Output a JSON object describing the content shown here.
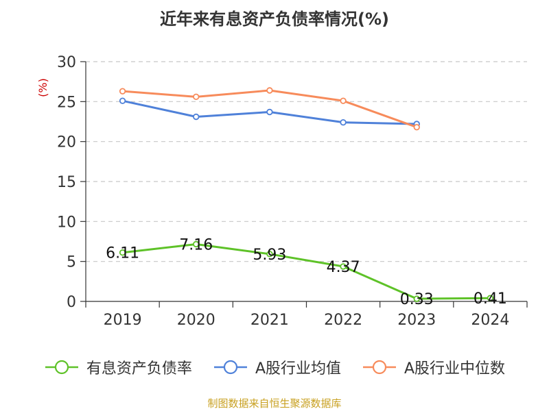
{
  "title": "近年来有息资产负债率情况(%)",
  "source": "制图数据来自恒生聚源数据库",
  "chart_data": {
    "type": "line",
    "title": "近年来有息资产负债率情况(%)",
    "y_unit": "(%)",
    "categories": [
      "2019",
      "2020",
      "2021",
      "2022",
      "2023",
      "2024"
    ],
    "ylim": [
      0,
      30
    ],
    "yticks": [
      0,
      5,
      10,
      15,
      20,
      25,
      30
    ],
    "grid": true,
    "legend_position": "bottom",
    "series": [
      {
        "name": "有息资产负债率",
        "color": "#5ec228",
        "values": [
          6.11,
          7.16,
          5.93,
          4.37,
          0.33,
          0.41
        ],
        "labels": [
          "6.11",
          "7.16",
          "5.93",
          "4.37",
          "0.33",
          "0.41"
        ],
        "show_labels": true
      },
      {
        "name": "A股行业均值",
        "color": "#4f81d9",
        "values": [
          25.1,
          23.1,
          23.7,
          22.4,
          22.2,
          null
        ],
        "show_labels": false
      },
      {
        "name": "A股行业中位数",
        "color": "#f78b5b",
        "values": [
          26.3,
          25.6,
          26.4,
          25.1,
          21.8,
          null
        ],
        "show_labels": false
      }
    ]
  }
}
